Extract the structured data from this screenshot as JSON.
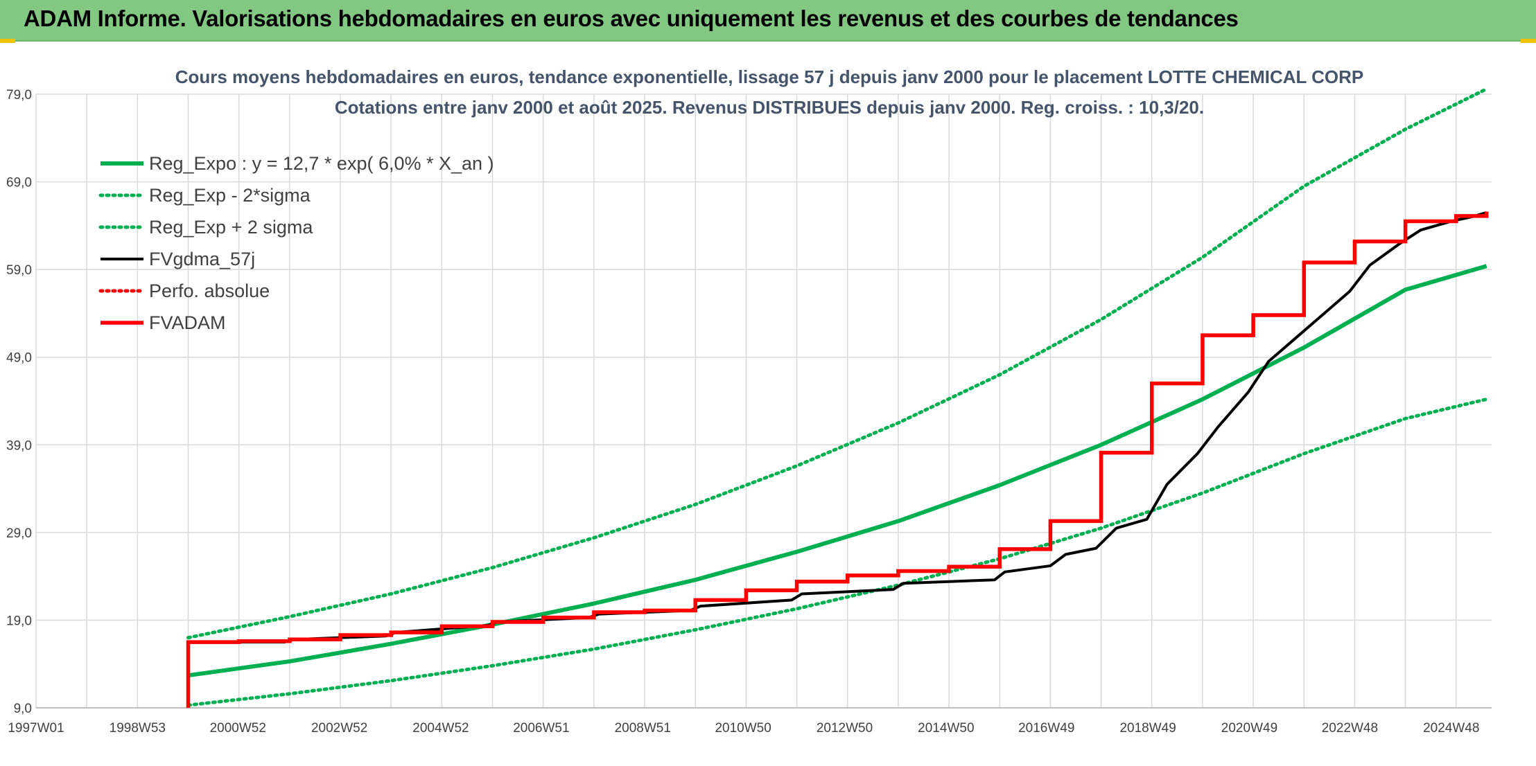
{
  "banner": {
    "title": "ADAM Informe. Valorisations hebdomadaires en euros avec uniquement les revenus et des courbes de tendances"
  },
  "colors": {
    "banner_bg": "#82c882",
    "green": "#00b050",
    "red": "#ff0000",
    "black": "#000000",
    "grid": "#d9d9d9"
  },
  "chart_data": {
    "type": "line",
    "title": "Cours moyens hebdomadaires en euros, tendance exponentielle, lissage 57 j depuis janv 2000 pour le placement LOTTE CHEMICAL CORP",
    "subtitle": "Cotations entre janv 2000 et août 2025. Revenus DISTRIBUES depuis janv 2000. Reg. croiss. : 10,3/20.",
    "xlabel": "",
    "ylabel": "",
    "grid": true,
    "legend_position": "top-left",
    "x_ticks": [
      "1997W01",
      "1998W53",
      "2000W52",
      "2002W52",
      "2004W52",
      "2006W51",
      "2008W51",
      "2010W50",
      "2012W50",
      "2014W50",
      "2016W49",
      "2018W49",
      "2020W49",
      "2022W48",
      "2024W48"
    ],
    "x_range": [
      1997.0,
      2025.7
    ],
    "y_ticks": [
      "9,0",
      "19,0",
      "29,0",
      "39,0",
      "49,0",
      "59,0",
      "69,0",
      "79,0"
    ],
    "ylim": [
      9,
      79
    ],
    "series": [
      {
        "name": "Reg_Expo : y = 12,7 * exp( 6,0% *  X_an )",
        "style": "solid-thick",
        "color": "#00b050",
        "x": [
          2000.0,
          2002.0,
          2004.0,
          2006.0,
          2008.0,
          2010.0,
          2012.0,
          2014.0,
          2016.0,
          2018.0,
          2020.0,
          2022.0,
          2024.0,
          2025.6
        ],
        "y": [
          12.7,
          14.3,
          16.3,
          18.5,
          20.9,
          23.6,
          26.8,
          30.3,
          34.4,
          39.0,
          44.2,
          50.1,
          56.7,
          59.4
        ]
      },
      {
        "name": "Reg_Exp - 2*sigma",
        "style": "dotted",
        "color": "#00b050",
        "x": [
          2000.0,
          2002.0,
          2004.0,
          2006.0,
          2008.0,
          2010.0,
          2012.0,
          2014.0,
          2016.0,
          2018.0,
          2020.0,
          2022.0,
          2024.0,
          2025.6
        ],
        "y": [
          9.3,
          10.6,
          12.1,
          13.8,
          15.7,
          17.9,
          20.3,
          23.0,
          26.0,
          29.5,
          33.5,
          38.0,
          42.0,
          44.2
        ]
      },
      {
        "name": "Reg_Exp + 2 sigma",
        "style": "dotted",
        "color": "#00b050",
        "x": [
          2000.0,
          2002.0,
          2004.0,
          2006.0,
          2008.0,
          2010.0,
          2012.0,
          2014.0,
          2016.0,
          2018.0,
          2020.0,
          2022.0,
          2024.0,
          2025.6
        ],
        "y": [
          17.0,
          19.4,
          22.0,
          25.0,
          28.4,
          32.2,
          36.6,
          41.5,
          47.0,
          53.3,
          60.4,
          68.5,
          75.0,
          79.6
        ]
      },
      {
        "name": "FVgdma_57j",
        "style": "solid",
        "color": "#000000",
        "x": [
          2000.0,
          2001.9,
          2002.1,
          2003.9,
          2004.1,
          2005.9,
          2006.1,
          2007.9,
          2008.1,
          2009.9,
          2010.1,
          2011.9,
          2012.1,
          2013.9,
          2014.1,
          2015.9,
          2016.1,
          2017.0,
          2017.3,
          2017.9,
          2018.3,
          2018.9,
          2019.3,
          2019.9,
          2020.3,
          2020.9,
          2021.3,
          2021.9,
          2022.3,
          2022.9,
          2023.3,
          2023.9,
          2024.3,
          2024.9,
          2025.3,
          2025.6
        ],
        "y": [
          16.5,
          16.5,
          16.8,
          17.2,
          17.6,
          18.4,
          18.8,
          19.3,
          19.7,
          20.1,
          20.6,
          21.3,
          22.0,
          22.5,
          23.2,
          23.6,
          24.5,
          25.2,
          26.5,
          27.2,
          29.5,
          30.5,
          34.5,
          38.0,
          41.0,
          45.0,
          48.5,
          51.5,
          53.5,
          56.5,
          59.5,
          62.0,
          63.5,
          64.5,
          65.0,
          65.5
        ]
      },
      {
        "name": "Perfo. absolue",
        "style": "dotted",
        "color": "#ff0000",
        "x": [],
        "y": []
      },
      {
        "name": "FVADAM",
        "style": "step-thick",
        "color": "#ff0000",
        "x": [
          2000.0,
          2000.0,
          2001.0,
          2002.0,
          2003.0,
          2004.0,
          2005.0,
          2006.0,
          2007.0,
          2008.0,
          2009.0,
          2010.0,
          2011.0,
          2012.0,
          2013.0,
          2014.0,
          2015.0,
          2016.0,
          2017.0,
          2018.0,
          2019.0,
          2020.0,
          2021.0,
          2022.0,
          2023.0,
          2024.0,
          2025.0,
          2025.6
        ],
        "y": [
          9.0,
          16.5,
          16.6,
          16.8,
          17.3,
          17.6,
          18.3,
          18.8,
          19.3,
          19.9,
          20.1,
          21.3,
          22.4,
          23.4,
          24.1,
          24.6,
          25.1,
          27.1,
          30.3,
          38.1,
          46.0,
          51.5,
          53.8,
          59.8,
          62.2,
          64.5,
          65.1,
          65.6
        ]
      }
    ]
  }
}
